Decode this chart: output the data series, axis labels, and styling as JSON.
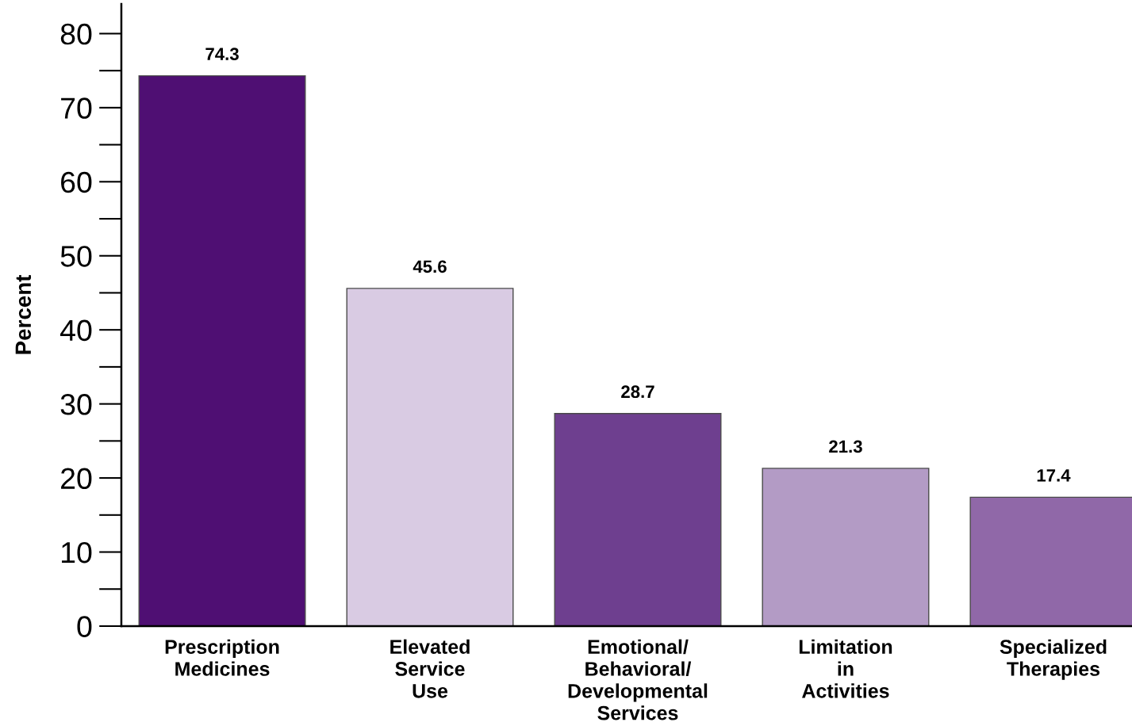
{
  "chart_data": {
    "type": "bar",
    "ylabel": "Percent",
    "categories": [
      "Prescription\nMedicines",
      "Elevated\nService\nUse",
      "Emotional/\nBehavioral/\nDevelopmental\nServices",
      "Limitation\nin\nActivities",
      "Specialized\nTherapies"
    ],
    "values": [
      74.3,
      45.6,
      28.7,
      21.3,
      17.4
    ],
    "colors": [
      "#4f0f73",
      "#d9cbe3",
      "#6e3f8f",
      "#b39bc5",
      "#9068a8"
    ],
    "ylim": [
      0,
      84
    ],
    "yticks": [
      0,
      10,
      20,
      30,
      40,
      50,
      60,
      70,
      80
    ],
    "data_labels": true
  }
}
